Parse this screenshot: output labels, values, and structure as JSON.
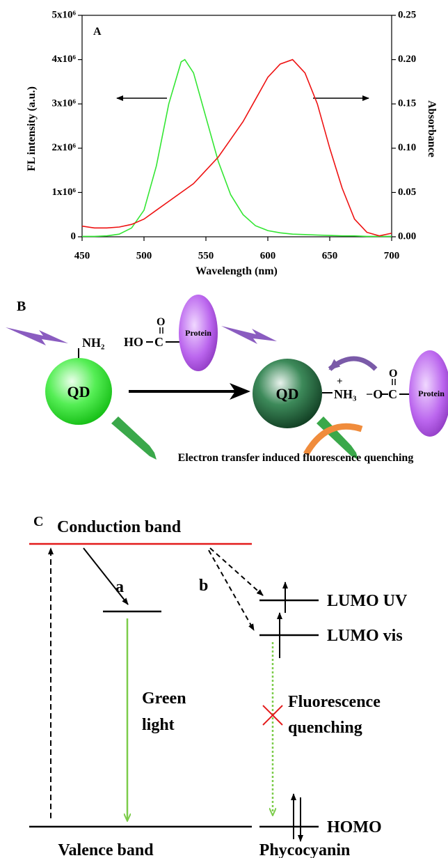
{
  "chart_data": {
    "type": "line",
    "panel_label": "A",
    "xlabel": "Wavelength (nm)",
    "ylabel": "FL intensity (a.u.)",
    "y2label": "Absorbance",
    "x": [
      450,
      460,
      470,
      480,
      490,
      500,
      510,
      520,
      530,
      533,
      540,
      550,
      560,
      570,
      580,
      590,
      600,
      610,
      620,
      630,
      640,
      650,
      660,
      670,
      680,
      690,
      700
    ],
    "xlim": [
      450,
      700
    ],
    "xticks": [
      450,
      500,
      550,
      600,
      650,
      700
    ],
    "ylim": [
      0,
      5000000
    ],
    "yticks": [
      0,
      {
        "value": 1000000,
        "label": "1x10⁶"
      },
      {
        "value": 2000000,
        "label": "2x10⁶"
      },
      {
        "value": 3000000,
        "label": "3x10⁶"
      },
      {
        "value": 4000000,
        "label": "4x10⁶"
      },
      {
        "value": 5000000,
        "label": "5x10⁶"
      }
    ],
    "y2lim": [
      0,
      0.25
    ],
    "y2ticks": [
      {
        "value": 0,
        "label": "0.00"
      },
      0.05,
      {
        "value": 0.1,
        "label": "0.10"
      },
      0.15,
      {
        "value": 0.2,
        "label": "0.20"
      },
      0.25
    ],
    "series": [
      {
        "color": "#33e633",
        "values": [
          10000,
          10000,
          20000,
          60000,
          200000,
          600000,
          1600000,
          3000000,
          3950000,
          4000000,
          3700000,
          2700000,
          1700000,
          950000,
          500000,
          250000,
          140000,
          90000,
          60000,
          50000,
          40000,
          30000,
          20000,
          20000,
          10000,
          10000,
          10000
        ]
      },
      {
        "color": "#ee1111",
        "axis": "y2",
        "values": [
          0.012,
          0.01,
          0.01,
          0.011,
          0.014,
          0.02,
          0.03,
          0.04,
          0.05,
          0.053,
          0.06,
          0.075,
          0.09,
          0.11,
          0.13,
          0.155,
          0.18,
          0.195,
          0.2,
          0.185,
          0.15,
          0.1,
          0.055,
          0.02,
          0.005,
          0.001,
          0.004
        ]
      }
    ]
  },
  "panel_b": {
    "label": "B",
    "amine": "NH₂",
    "acid_ho": "HO",
    "acid_c": "C",
    "acid_o": "O",
    "protein_left": "Protein",
    "qd_left": "QD",
    "qd_right": "QD",
    "charge_plus": "+",
    "ammonium": "NH₃",
    "carboxylate_o": "−O",
    "carboxylate_c": "C",
    "carboxylate_o2": "O",
    "protein_right": "Protein",
    "caption": "Electron transfer induced fluorescence quenching"
  },
  "panel_c": {
    "label": "C",
    "conduction_band": "Conduction band",
    "path_a": "a",
    "path_b": "b",
    "lumo_uv": "LUMO UV",
    "lumo_vis": "LUMO vis",
    "green_light": [
      "Green",
      "light"
    ],
    "quenching": [
      "Fluorescence",
      "quenching"
    ],
    "homo": "HOMO",
    "valence_band": "Valence band",
    "molecule": "Phycocyanin"
  }
}
